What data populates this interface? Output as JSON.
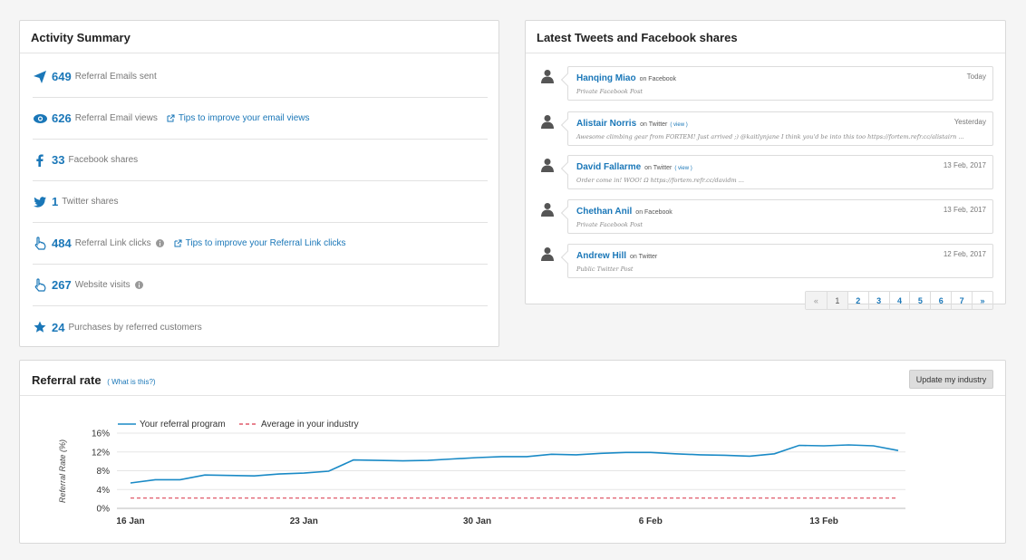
{
  "activity": {
    "title": "Activity Summary",
    "stats": [
      {
        "icon": "paper-plane-icon",
        "value": "649",
        "label": "Referral Emails sent"
      },
      {
        "icon": "eye-icon",
        "value": "626",
        "label": "Referral Email views",
        "tip": "Tips to improve your email views"
      },
      {
        "icon": "facebook-icon",
        "value": "33",
        "label": "Facebook shares"
      },
      {
        "icon": "twitter-icon",
        "value": "1",
        "label": "Twitter shares"
      },
      {
        "icon": "pointer-hand-icon",
        "value": "484",
        "label": "Referral Link clicks",
        "tip": "Tips to improve your Referral Link clicks"
      },
      {
        "icon": "pointer-hand-icon",
        "value": "267",
        "label": "Website visits"
      },
      {
        "icon": "star-icon",
        "value": "24",
        "label": "Purchases by referred customers"
      }
    ]
  },
  "tweets": {
    "title": "Latest Tweets and Facebook shares",
    "items": [
      {
        "name": "Hanqing Miao",
        "source": "on Facebook",
        "view": "",
        "body": "Private Facebook Post",
        "date": "Today"
      },
      {
        "name": "Alistair Norris",
        "source": "on Twitter",
        "view": "( view )",
        "body": "Awesome climbing gear from FORTEM! Just arrived ;) @kaitlynjane I think you'd be into this too https://fortem.refr.cc/alistairn ...",
        "date": "Yesterday"
      },
      {
        "name": "David Fallarme",
        "source": "on Twitter",
        "view": "( view )",
        "body": "Order come in! WOO! Ω https://fortem.refr.cc/davidm ...",
        "date": "13 Feb, 2017"
      },
      {
        "name": "Chethan Anil",
        "source": "on Facebook",
        "view": "",
        "body": "Private Facebook Post",
        "date": "13 Feb, 2017"
      },
      {
        "name": "Andrew Hill",
        "source": "on Twitter",
        "view": "",
        "body": "Public Twitter Post",
        "date": "12 Feb, 2017"
      }
    ],
    "pager": [
      "«",
      "1",
      "2",
      "3",
      "4",
      "5",
      "6",
      "7",
      "»"
    ],
    "pager_active": "1"
  },
  "referral": {
    "title": "Referral rate",
    "what_is_this": "( What is this?)",
    "update_button": "Update my industry"
  },
  "chart_data": {
    "type": "line",
    "ylabel": "Referral Rate (%)",
    "y_ticks": [
      "0%",
      "4%",
      "8%",
      "12%",
      "16%"
    ],
    "ylim": [
      0,
      16
    ],
    "x_ticks": [
      "16 Jan",
      "23 Jan",
      "30 Jan",
      "6 Feb",
      "13 Feb"
    ],
    "legend_position": "top-left",
    "grid": true,
    "series": [
      {
        "name": "Your referral program",
        "color": "#1a8ac6",
        "style": "solid",
        "values": [
          5.4,
          6.1,
          6.1,
          7.1,
          7.0,
          6.9,
          7.3,
          7.5,
          7.9,
          10.3,
          10.2,
          10.1,
          10.2,
          10.5,
          10.8,
          11.0,
          11.0,
          11.5,
          11.4,
          11.7,
          11.9,
          11.9,
          11.6,
          11.4,
          11.3,
          11.1,
          11.6,
          13.4,
          13.3,
          13.5,
          13.3,
          12.3
        ]
      },
      {
        "name": "Average in your industry",
        "color": "#e05a6a",
        "style": "dashed",
        "values": [
          2.2,
          2.2,
          2.2,
          2.2,
          2.2,
          2.2,
          2.2,
          2.2,
          2.2,
          2.2,
          2.2,
          2.2,
          2.2,
          2.2,
          2.2,
          2.2,
          2.2,
          2.2,
          2.2,
          2.2,
          2.2,
          2.2,
          2.2,
          2.2,
          2.2,
          2.2,
          2.2,
          2.2,
          2.2,
          2.2,
          2.2,
          2.2
        ]
      }
    ]
  },
  "colors": {
    "accent": "#1a77b8",
    "grid": "#e5e5e5"
  }
}
